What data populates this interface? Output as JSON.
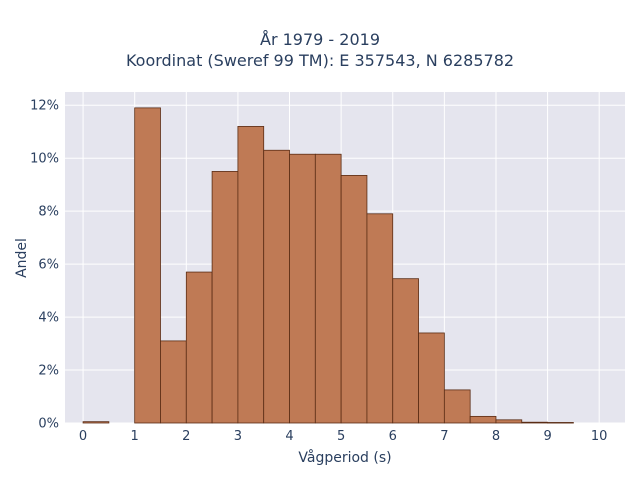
{
  "title_lines": [
    "År 1979 - 2019",
    "Koordinat (Sweref 99 TM): E 357543, N 6285782"
  ],
  "colors": {
    "plot_bg": "#e5e5ee",
    "bar_fill": "#bf7a55",
    "bar_edge": "#5a2c14",
    "grid": "#ffffff",
    "text": "#2a3f5f"
  },
  "chart_data": {
    "type": "bar",
    "xlabel": "Vågperiod (s)",
    "ylabel": "Andel",
    "xlim": [
      -0.35,
      10.5
    ],
    "ylim": [
      0,
      0.125
    ],
    "x_ticks": [
      0,
      1,
      2,
      3,
      4,
      5,
      6,
      7,
      8,
      9,
      10
    ],
    "y_ticks": [
      0,
      0.02,
      0.04,
      0.06,
      0.08,
      0.1,
      0.12
    ],
    "y_tick_labels": [
      "0%",
      "2%",
      "4%",
      "6%",
      "8%",
      "10%",
      "12%"
    ],
    "bin_width": 0.5,
    "bins": [
      {
        "start": 0.0,
        "value": 0.0005
      },
      {
        "start": 0.5,
        "value": 0.0
      },
      {
        "start": 1.0,
        "value": 0.119
      },
      {
        "start": 1.5,
        "value": 0.031
      },
      {
        "start": 2.0,
        "value": 0.057
      },
      {
        "start": 2.5,
        "value": 0.095
      },
      {
        "start": 3.0,
        "value": 0.112
      },
      {
        "start": 3.5,
        "value": 0.103
      },
      {
        "start": 4.0,
        "value": 0.1015
      },
      {
        "start": 4.5,
        "value": 0.1015
      },
      {
        "start": 5.0,
        "value": 0.0935
      },
      {
        "start": 5.5,
        "value": 0.079
      },
      {
        "start": 6.0,
        "value": 0.0545
      },
      {
        "start": 6.5,
        "value": 0.034
      },
      {
        "start": 7.0,
        "value": 0.0125
      },
      {
        "start": 7.5,
        "value": 0.0025
      },
      {
        "start": 8.0,
        "value": 0.0012
      },
      {
        "start": 8.5,
        "value": 0.0003
      },
      {
        "start": 9.0,
        "value": 0.0002
      },
      {
        "start": 9.5,
        "value": 0.0
      }
    ]
  }
}
